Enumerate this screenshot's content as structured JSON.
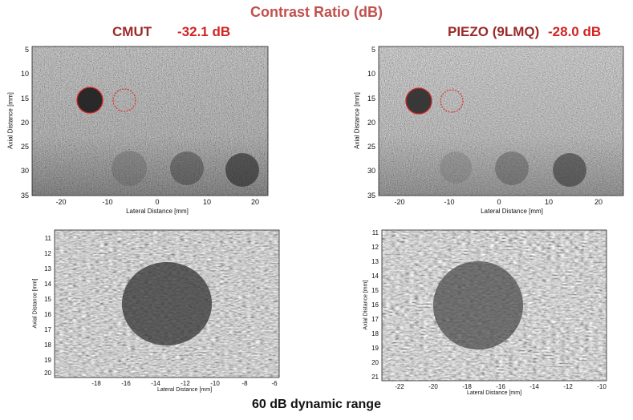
{
  "title": "Contrast Ratio (dB)",
  "footer": "60 dB dynamic range",
  "cmut": {
    "label": "CMUT",
    "ratio": "-32.1 dB"
  },
  "piezo": {
    "label": "PIEZO (9LMQ)",
    "ratio": "-28.0 dB"
  },
  "axes": {
    "axial_label": "Axial Distance [mm]",
    "lateral_label": "Lateral Distance [mm]"
  },
  "panels": {
    "top_left": {
      "x_ticks": [
        "-20",
        "-10",
        "0",
        "10",
        "20"
      ],
      "y_ticks": [
        "5",
        "10",
        "15",
        "20",
        "25",
        "30",
        "35"
      ]
    },
    "top_right": {
      "x_ticks": [
        "-20",
        "-10",
        "0",
        "10",
        "20"
      ],
      "y_ticks": [
        "5",
        "10",
        "15",
        "20",
        "25",
        "30",
        "35"
      ]
    },
    "bottom_left": {
      "x_ticks": [
        "-18",
        "-16",
        "-14",
        "-12",
        "-10",
        "-8",
        "-6"
      ],
      "y_ticks": [
        "11",
        "12",
        "13",
        "14",
        "15",
        "16",
        "17",
        "18",
        "19",
        "20"
      ]
    },
    "bottom_right": {
      "x_ticks": [
        "-22",
        "-20",
        "-18",
        "-16",
        "-14",
        "-12",
        "-10"
      ],
      "y_ticks": [
        "11",
        "12",
        "13",
        "14",
        "15",
        "16",
        "17",
        "18",
        "19",
        "20",
        "21"
      ]
    }
  },
  "colors": {
    "title": "#c0504d",
    "ratio": "#d22424",
    "label": "#9b2a28",
    "roi_outline": "#e02020"
  }
}
